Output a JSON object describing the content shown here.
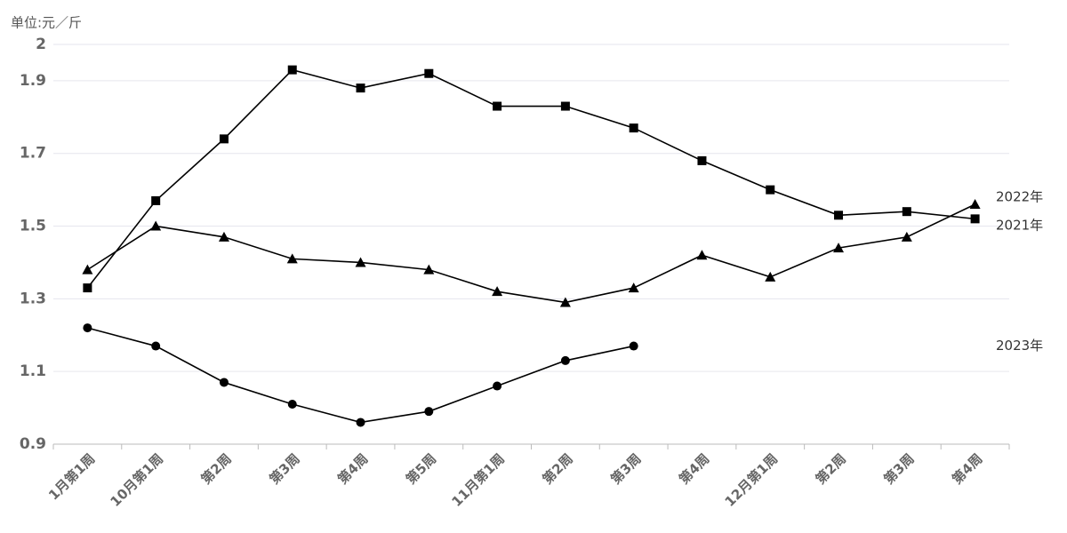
{
  "chart_data": {
    "type": "line",
    "y_label": "单位:元／斤",
    "categories": [
      "1月第1周",
      "10月第1周",
      "第2周",
      "第3周",
      "第4周",
      "第5周",
      "11月第1周",
      "第2周",
      "第3周",
      "第4周",
      "12月第1周",
      "第2周",
      "第3周",
      "第4周"
    ],
    "series": [
      {
        "name": "2022年",
        "color": "#000000",
        "marker": "triangle",
        "values": [
          1.38,
          1.5,
          1.47,
          1.41,
          1.4,
          1.38,
          1.32,
          1.29,
          1.33,
          1.42,
          1.36,
          1.44,
          1.47,
          1.56
        ]
      },
      {
        "name": "2021年",
        "color": "#000000",
        "marker": "square",
        "values": [
          1.33,
          1.57,
          1.74,
          1.93,
          1.88,
          1.92,
          1.83,
          1.83,
          1.77,
          1.68,
          1.6,
          1.53,
          1.54,
          1.52
        ]
      },
      {
        "name": "2023年",
        "color": "#000000",
        "marker": "circle",
        "values": [
          1.22,
          1.17,
          1.07,
          1.01,
          0.96,
          0.99,
          1.06,
          1.13,
          1.17,
          null,
          null,
          null,
          null,
          null
        ]
      }
    ],
    "ylim": [
      0.9,
      2
    ],
    "yticks": [
      0.9,
      1.1,
      1.3,
      1.5,
      1.7,
      1.9,
      2
    ],
    "grid": true
  }
}
